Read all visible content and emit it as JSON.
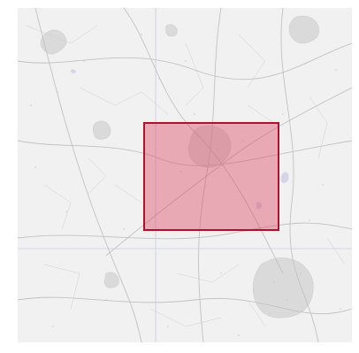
{
  "map": {
    "style": "grayscale-street-map",
    "background_color": "#f1f1f1",
    "grid_line_color": "#c8cbe0",
    "road_color": "#bdbdbd",
    "urban_area_color": "#d6d6d6",
    "water_color": "#d3d6e8"
  },
  "selection": {
    "shape": "rectangle",
    "fill_color": "rgba(220, 60, 90, 0.40)",
    "border_color": "#b0102a"
  }
}
